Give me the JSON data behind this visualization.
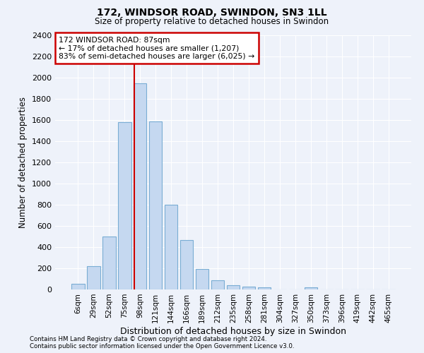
{
  "title1": "172, WINDSOR ROAD, SWINDON, SN3 1LL",
  "title2": "Size of property relative to detached houses in Swindon",
  "xlabel": "Distribution of detached houses by size in Swindon",
  "ylabel": "Number of detached properties",
  "categories": [
    "6sqm",
    "29sqm",
    "52sqm",
    "75sqm",
    "98sqm",
    "121sqm",
    "144sqm",
    "166sqm",
    "189sqm",
    "212sqm",
    "235sqm",
    "258sqm",
    "281sqm",
    "304sqm",
    "327sqm",
    "350sqm",
    "373sqm",
    "396sqm",
    "419sqm",
    "442sqm",
    "465sqm"
  ],
  "values": [
    55,
    220,
    500,
    1580,
    1950,
    1590,
    800,
    470,
    195,
    90,
    37,
    30,
    20,
    0,
    0,
    20,
    0,
    0,
    0,
    0,
    0
  ],
  "bar_color": "#c5d8f0",
  "bar_edge_color": "#7aadd4",
  "bar_width": 0.85,
  "vline_x": 3.62,
  "vline_color": "#cc0000",
  "ylim": [
    0,
    2400
  ],
  "yticks": [
    0,
    200,
    400,
    600,
    800,
    1000,
    1200,
    1400,
    1600,
    1800,
    2000,
    2200,
    2400
  ],
  "annotation_title": "172 WINDSOR ROAD: 87sqm",
  "annotation_line1": "← 17% of detached houses are smaller (1,207)",
  "annotation_line2": "83% of semi-detached houses are larger (6,025) →",
  "annotation_box_color": "#cc0000",
  "background_color": "#eef2fa",
  "grid_color": "#ffffff",
  "footnote1": "Contains HM Land Registry data © Crown copyright and database right 2024.",
  "footnote2": "Contains public sector information licensed under the Open Government Licence v3.0."
}
